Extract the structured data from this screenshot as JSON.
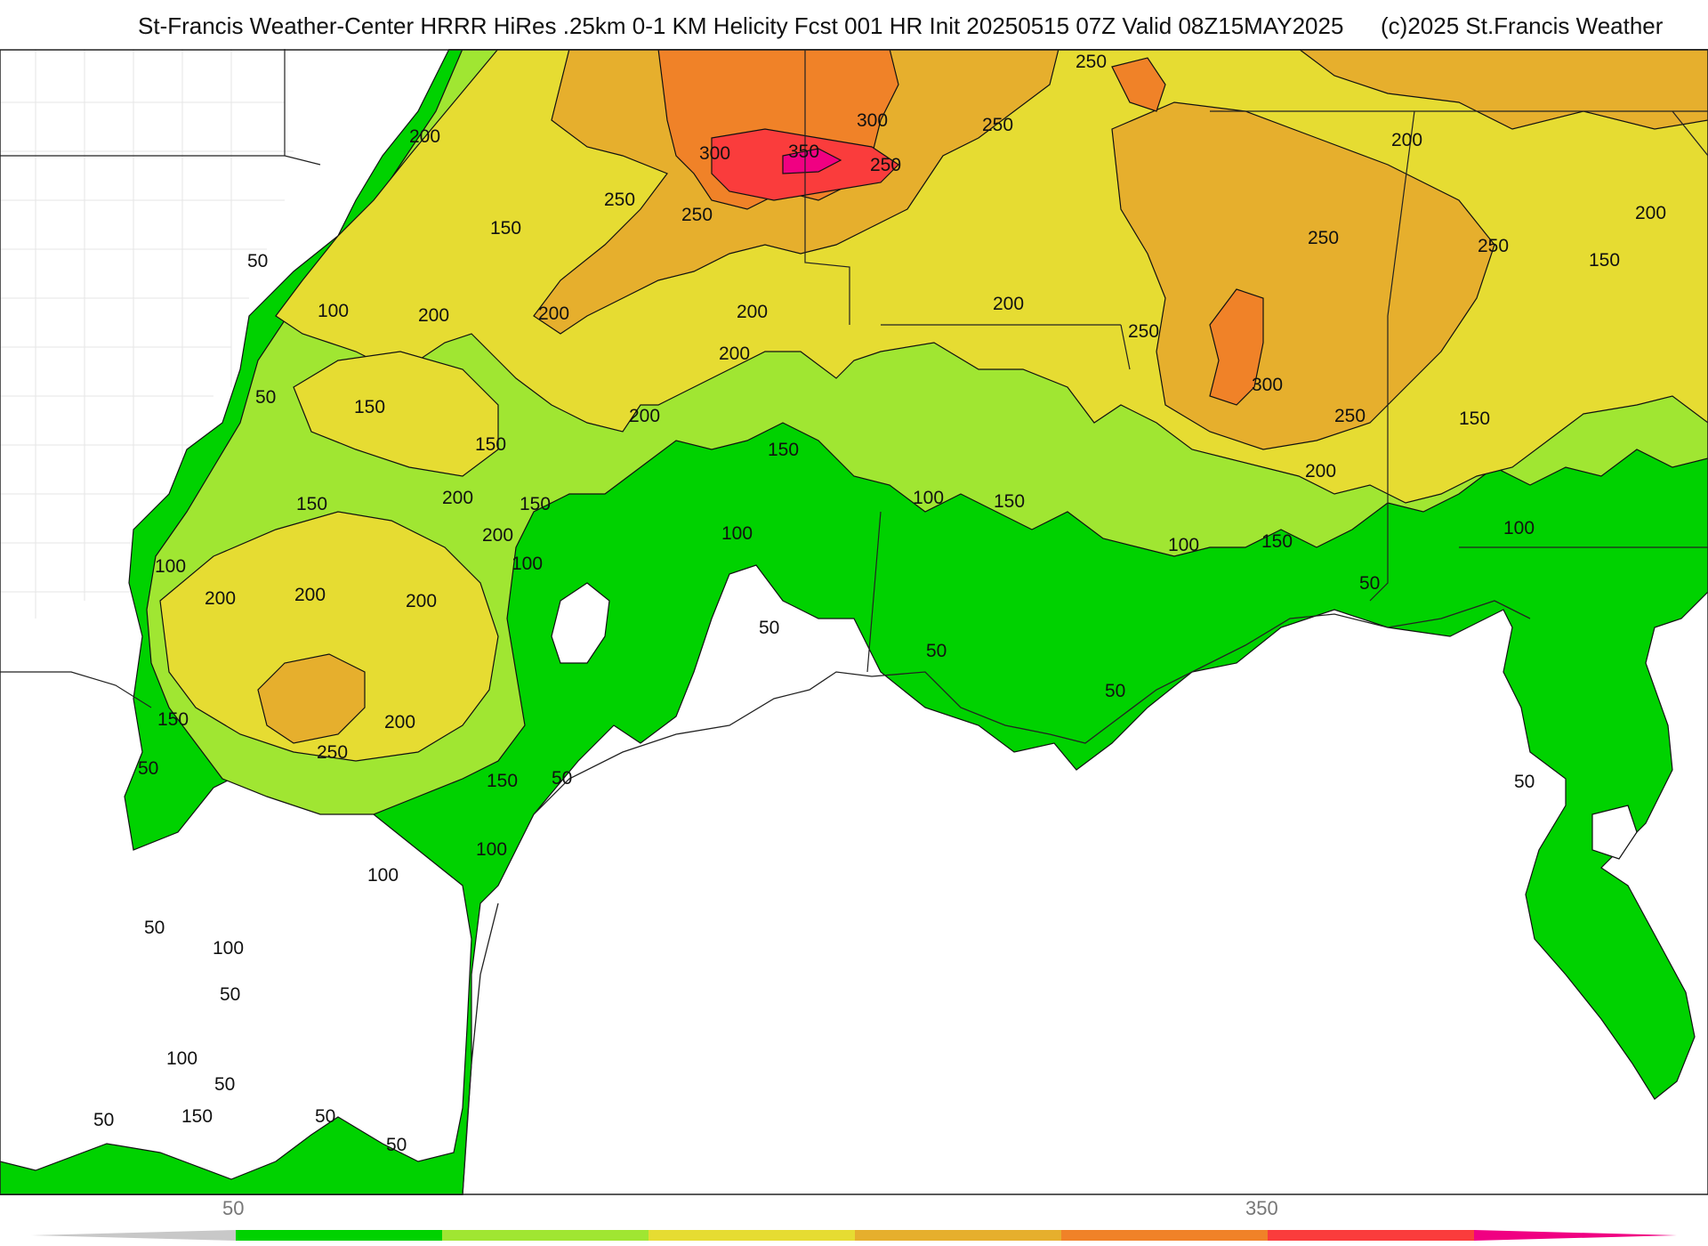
{
  "header": {
    "title": "St-Francis Weather-Center HRRR HiRes .25km 0-1 KM Helicity Fcst 001 HR Init 20250515 07Z  Valid 08Z15MAY2025",
    "copyright": "(c)2025 St.Francis Weather"
  },
  "map": {
    "contour_labels": [
      "50",
      "100",
      "150",
      "200",
      "250",
      "300",
      "350"
    ],
    "labels": {
      "l250_ne": "250",
      "l250_n": "250",
      "l300_n": "300",
      "l300_nw": "300",
      "l350": "350",
      "l250_nc": "250",
      "l200_nw": "200",
      "l250_nw": "250",
      "l250_nw2": "250",
      "l150_nw": "150",
      "l50_w1": "50",
      "l100_w1": "100",
      "l200_w": "200",
      "l200_c": "200",
      "l200_c2": "200",
      "l200_c3": "200",
      "l200_c4": "200",
      "l200_ne": "200",
      "l200_e": "200",
      "l150_e": "150",
      "l250_e": "250",
      "l250_e2": "250",
      "l300_e": "300",
      "l250_e3": "250",
      "l200_e2": "200",
      "l150_e2": "150",
      "l100_e": "100",
      "l50_e": "50",
      "l150_ne2": "150",
      "l200_ne2": "200",
      "l250_ne3": "250",
      "l50_w2": "50",
      "l150_w2": "150",
      "l150_w3": "150",
      "l150_w4": "150",
      "l200_w2": "200",
      "l200_w3": "200",
      "l150_w5": "150",
      "l100_w2": "100",
      "l100_w3": "100",
      "l100_c": "100",
      "l150_c": "150",
      "l100_c2": "100",
      "l150_c2": "150",
      "l50_c": "50",
      "l50_c2": "50",
      "l50_c3": "50",
      "l50_e2": "50",
      "l100_e2": "100",
      "l200_sw": "200",
      "l200_sw2": "200",
      "l200_sw3": "200",
      "l200_sw4": "200",
      "l250_sw": "250",
      "l150_sw": "150",
      "l50_sw": "50",
      "l150_sw2": "150",
      "l50_sw2": "50",
      "l100_sw": "100",
      "l100_sw2": "100",
      "l50_sw3": "50",
      "l100_sw3": "100",
      "l50_sw4": "50",
      "l100_sw4": "100",
      "l50_sw5": "50",
      "l150_sw3": "150",
      "l50_sw6": "50",
      "l50_sw7": "50",
      "l50_sw8": "50",
      "l200_ne4": "200"
    }
  },
  "colorbar": {
    "tick_min": "50",
    "tick_max": "350",
    "colors": [
      "#c8c8c8",
      "#00d200",
      "#a0e632",
      "#e6dc32",
      "#e6af2d",
      "#f08228",
      "#fa3c3c",
      "#f00082"
    ]
  }
}
